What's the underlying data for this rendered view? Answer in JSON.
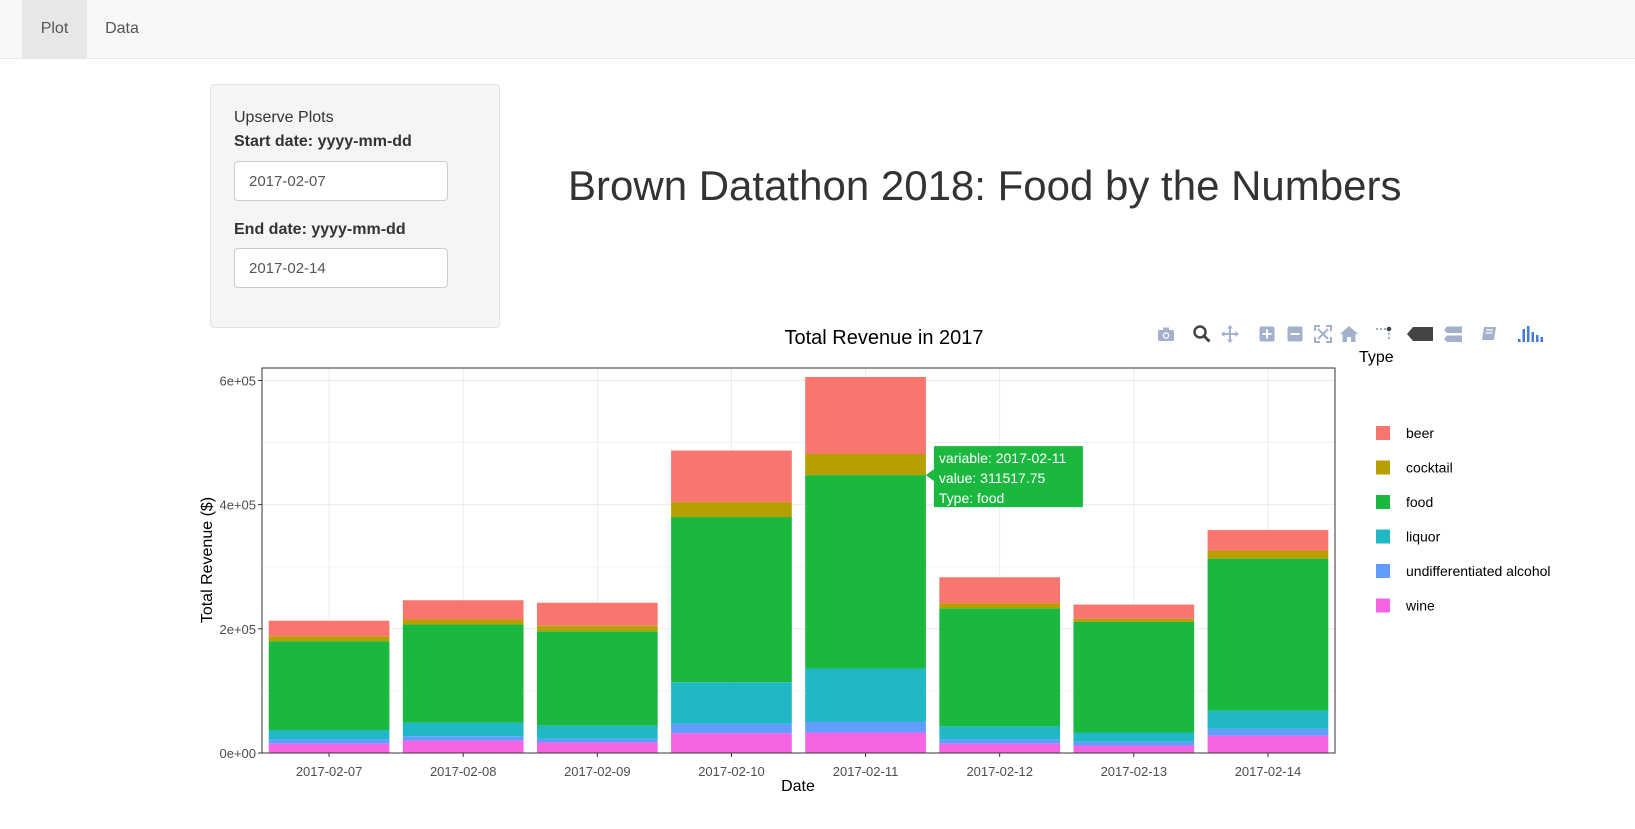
{
  "nav": {
    "tabs": [
      "Plot",
      "Data"
    ],
    "active": 0
  },
  "sidebar": {
    "title": "Upserve Plots",
    "start_label": "Start date: yyyy-mm-dd",
    "start_value": "2017-02-07",
    "end_label": "End date: yyyy-mm-dd",
    "end_value": "2017-02-14"
  },
  "page_title": "Brown Datathon 2018: Food by the Numbers",
  "modebar": [
    "camera-icon",
    "zoom-icon",
    "pan-icon",
    "zoom-in-icon",
    "zoom-out-icon",
    "autoscale-icon",
    "reset-axes-icon",
    "spike-lines-icon",
    "hover-closest-icon",
    "hover-compare-icon",
    "edit-icon",
    "plotly-logo-icon"
  ],
  "colors": {
    "beer": "#F8766D",
    "cocktail": "#B79F00",
    "food": "#1BB840",
    "liquor": "#1FB8C4",
    "undifferentiated alcohol": "#619CFF",
    "wine": "#F564E3",
    "modebar_icon": "#a3b1cc",
    "plotly_logo": "#447adb",
    "tooltip_bg": "#1BB840"
  },
  "chart_data": {
    "type": "bar",
    "stacked": true,
    "title": "Total Revenue in 2017",
    "xlabel": "Date",
    "ylabel": "Total Revenue ($)",
    "ylim": [
      0,
      620000
    ],
    "yticks": [
      0,
      200000,
      400000,
      600000
    ],
    "ytick_labels": [
      "0e+00",
      "2e+05",
      "4e+05",
      "6e+05"
    ],
    "grid": true,
    "legend_title": "Type",
    "legend_position": "right",
    "categories": [
      "2017-02-07",
      "2017-02-08",
      "2017-02-09",
      "2017-02-10",
      "2017-02-11",
      "2017-02-12",
      "2017-02-13",
      "2017-02-14"
    ],
    "series": [
      {
        "name": "wine",
        "values": [
          15000,
          20000,
          17000,
          32000,
          33000,
          15000,
          12000,
          28000
        ]
      },
      {
        "name": "undifferentiated alcohol",
        "values": [
          7000,
          7000,
          6000,
          15000,
          17000,
          7000,
          6000,
          11000
        ]
      },
      {
        "name": "liquor",
        "values": [
          15000,
          22000,
          21000,
          67000,
          86000,
          21000,
          15000,
          29000
        ]
      },
      {
        "name": "food",
        "values": [
          143000,
          158000,
          152000,
          266000,
          311517.75,
          190000,
          178000,
          245000
        ]
      },
      {
        "name": "cocktail",
        "values": [
          8000,
          8000,
          9000,
          24000,
          34000,
          8000,
          5000,
          13000
        ]
      },
      {
        "name": "beer",
        "values": [
          25000,
          31000,
          37000,
          83000,
          124000,
          42000,
          23000,
          33000
        ]
      }
    ],
    "tooltip": {
      "lines": [
        "variable: 2017-02-11",
        "value: 311517.75",
        "Type: food"
      ]
    }
  }
}
